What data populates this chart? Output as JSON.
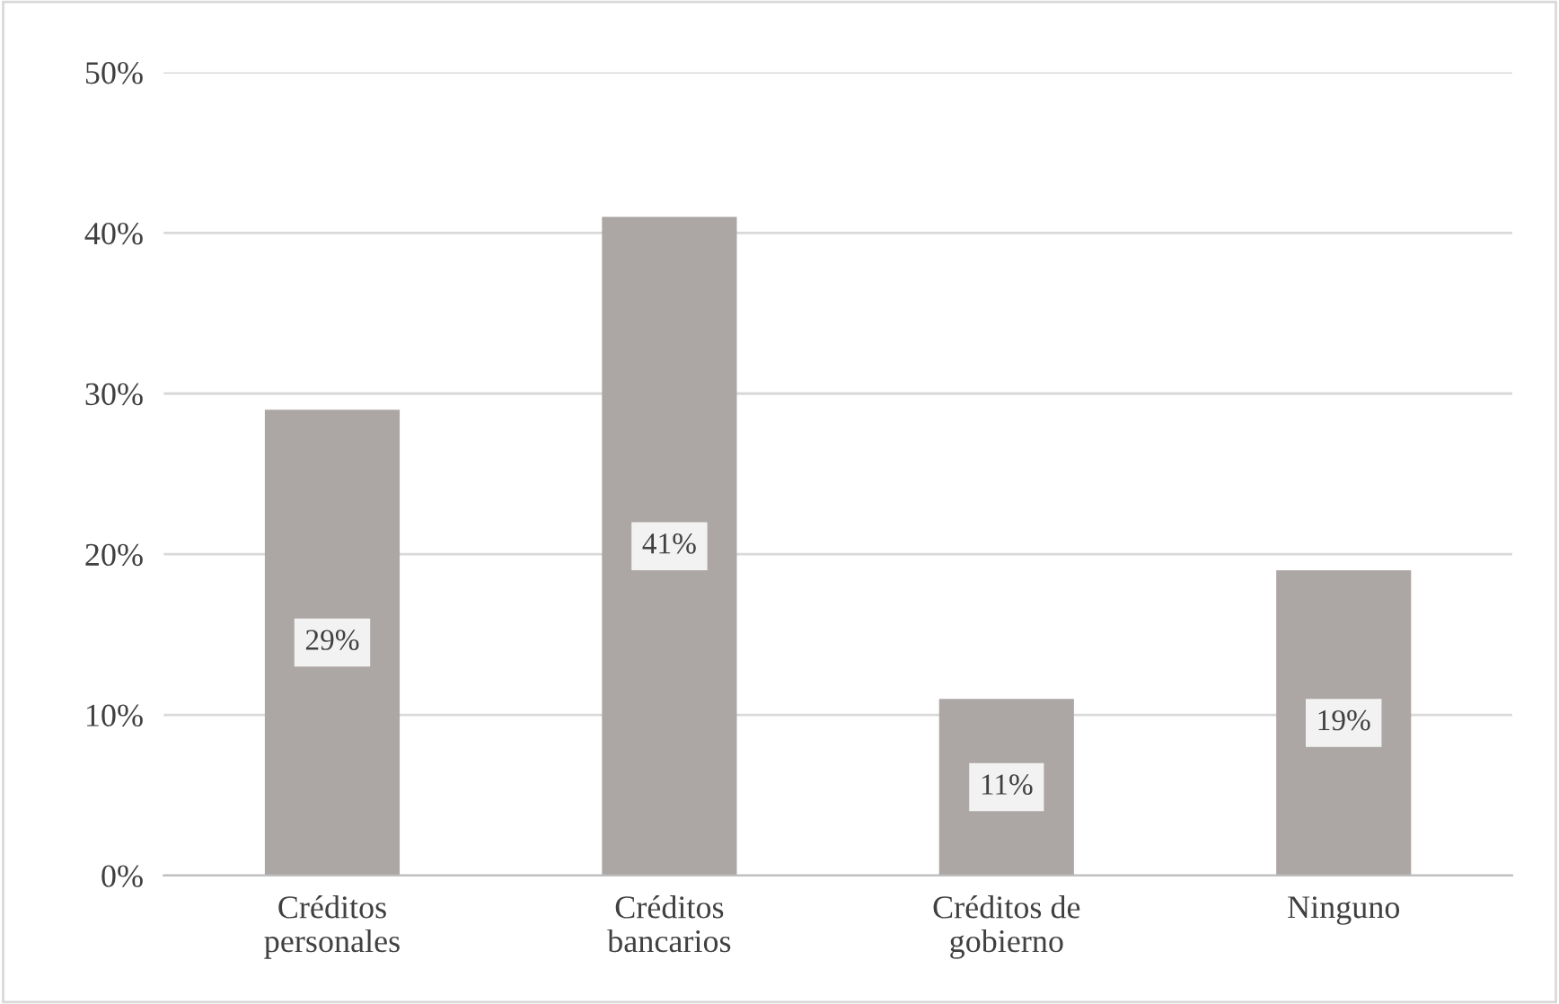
{
  "chart_data": {
    "type": "bar",
    "categories": [
      "Créditos\npersonales",
      "Créditos\nbancarios",
      "Créditos de\ngobierno",
      "Ninguno"
    ],
    "values": [
      29,
      41,
      11,
      19
    ],
    "value_labels": [
      "29%",
      "41%",
      "11%",
      "19%"
    ],
    "color": "#aca7a5",
    "ylim": [
      0,
      50
    ],
    "yticks": [
      {
        "value": 0,
        "label": "0%"
      },
      {
        "value": 10,
        "label": "10%"
      },
      {
        "value": 20,
        "label": "20%"
      },
      {
        "value": 30,
        "label": "30%"
      },
      {
        "value": 40,
        "label": "40%"
      },
      {
        "value": 50,
        "label": "50%"
      }
    ],
    "grid": "y",
    "legend": false
  }
}
